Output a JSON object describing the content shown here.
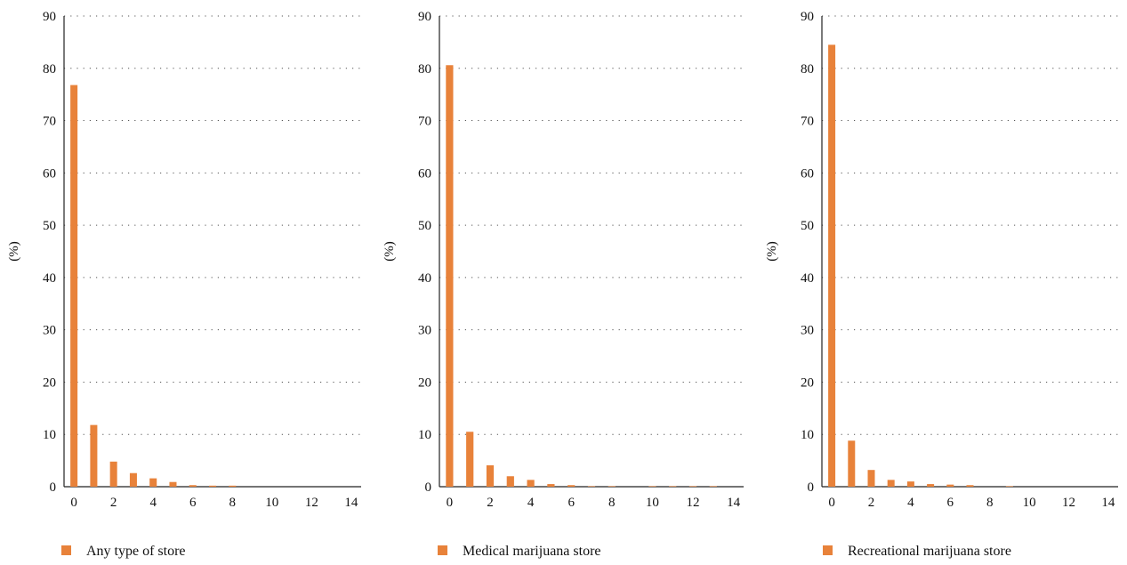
{
  "chart_data": [
    {
      "type": "bar",
      "ylabel": "(%)",
      "xlabel": "",
      "title": "",
      "ylim": [
        0,
        90
      ],
      "xlim": [
        -0.5,
        14.5
      ],
      "yticks": [
        "0",
        "10",
        "20",
        "30",
        "40",
        "50",
        "60",
        "70",
        "80",
        "90"
      ],
      "xticks": [
        "0",
        "2",
        "4",
        "6",
        "8",
        "10",
        "12",
        "14"
      ],
      "grid": "horizontal dotted",
      "legend_position": "bottom-left",
      "series": [
        {
          "name": "Any type of store",
          "x": [
            0,
            1,
            2,
            3,
            4,
            5,
            6,
            7,
            8,
            9,
            10,
            11,
            12,
            13,
            14
          ],
          "values": [
            76.8,
            11.8,
            4.8,
            2.6,
            1.6,
            0.9,
            0.3,
            0.2,
            0.2,
            0,
            0,
            0,
            0,
            0,
            0
          ]
        }
      ]
    },
    {
      "type": "bar",
      "ylabel": "(%)",
      "xlabel": "",
      "title": "",
      "ylim": [
        0,
        90
      ],
      "xlim": [
        -0.5,
        14.5
      ],
      "yticks": [
        "0",
        "10",
        "20",
        "30",
        "40",
        "50",
        "60",
        "70",
        "80",
        "90"
      ],
      "xticks": [
        "0",
        "2",
        "4",
        "6",
        "8",
        "10",
        "12",
        "14"
      ],
      "grid": "horizontal dotted",
      "legend_position": "bottom-left",
      "series": [
        {
          "name": "Medical marijuana store",
          "x": [
            0,
            1,
            2,
            3,
            4,
            5,
            6,
            7,
            8,
            9,
            10,
            11,
            12,
            13,
            14
          ],
          "values": [
            80.6,
            10.5,
            4.1,
            2.0,
            1.3,
            0.5,
            0.3,
            0.1,
            0.1,
            0,
            0.1,
            0.1,
            0.1,
            0.1,
            0
          ]
        }
      ]
    },
    {
      "type": "bar",
      "ylabel": "(%)",
      "xlabel": "",
      "title": "",
      "ylim": [
        0,
        90
      ],
      "xlim": [
        -0.5,
        14.5
      ],
      "yticks": [
        "0",
        "10",
        "20",
        "30",
        "40",
        "50",
        "60",
        "70",
        "80",
        "90"
      ],
      "xticks": [
        "0",
        "2",
        "4",
        "6",
        "8",
        "10",
        "12",
        "14"
      ],
      "grid": "horizontal dotted",
      "legend_position": "bottom-left",
      "series": [
        {
          "name": "Recreational marijuana store",
          "x": [
            0,
            1,
            2,
            3,
            4,
            5,
            6,
            7,
            8,
            9,
            10,
            11,
            12,
            13,
            14
          ],
          "values": [
            84.5,
            8.8,
            3.2,
            1.3,
            1.0,
            0.5,
            0.4,
            0.3,
            0,
            0.1,
            0,
            0,
            0,
            0,
            0
          ]
        }
      ]
    }
  ],
  "colors": {
    "bar": "#e8823a",
    "grid": "#555555",
    "axis": "#222222",
    "text": "#111111"
  }
}
